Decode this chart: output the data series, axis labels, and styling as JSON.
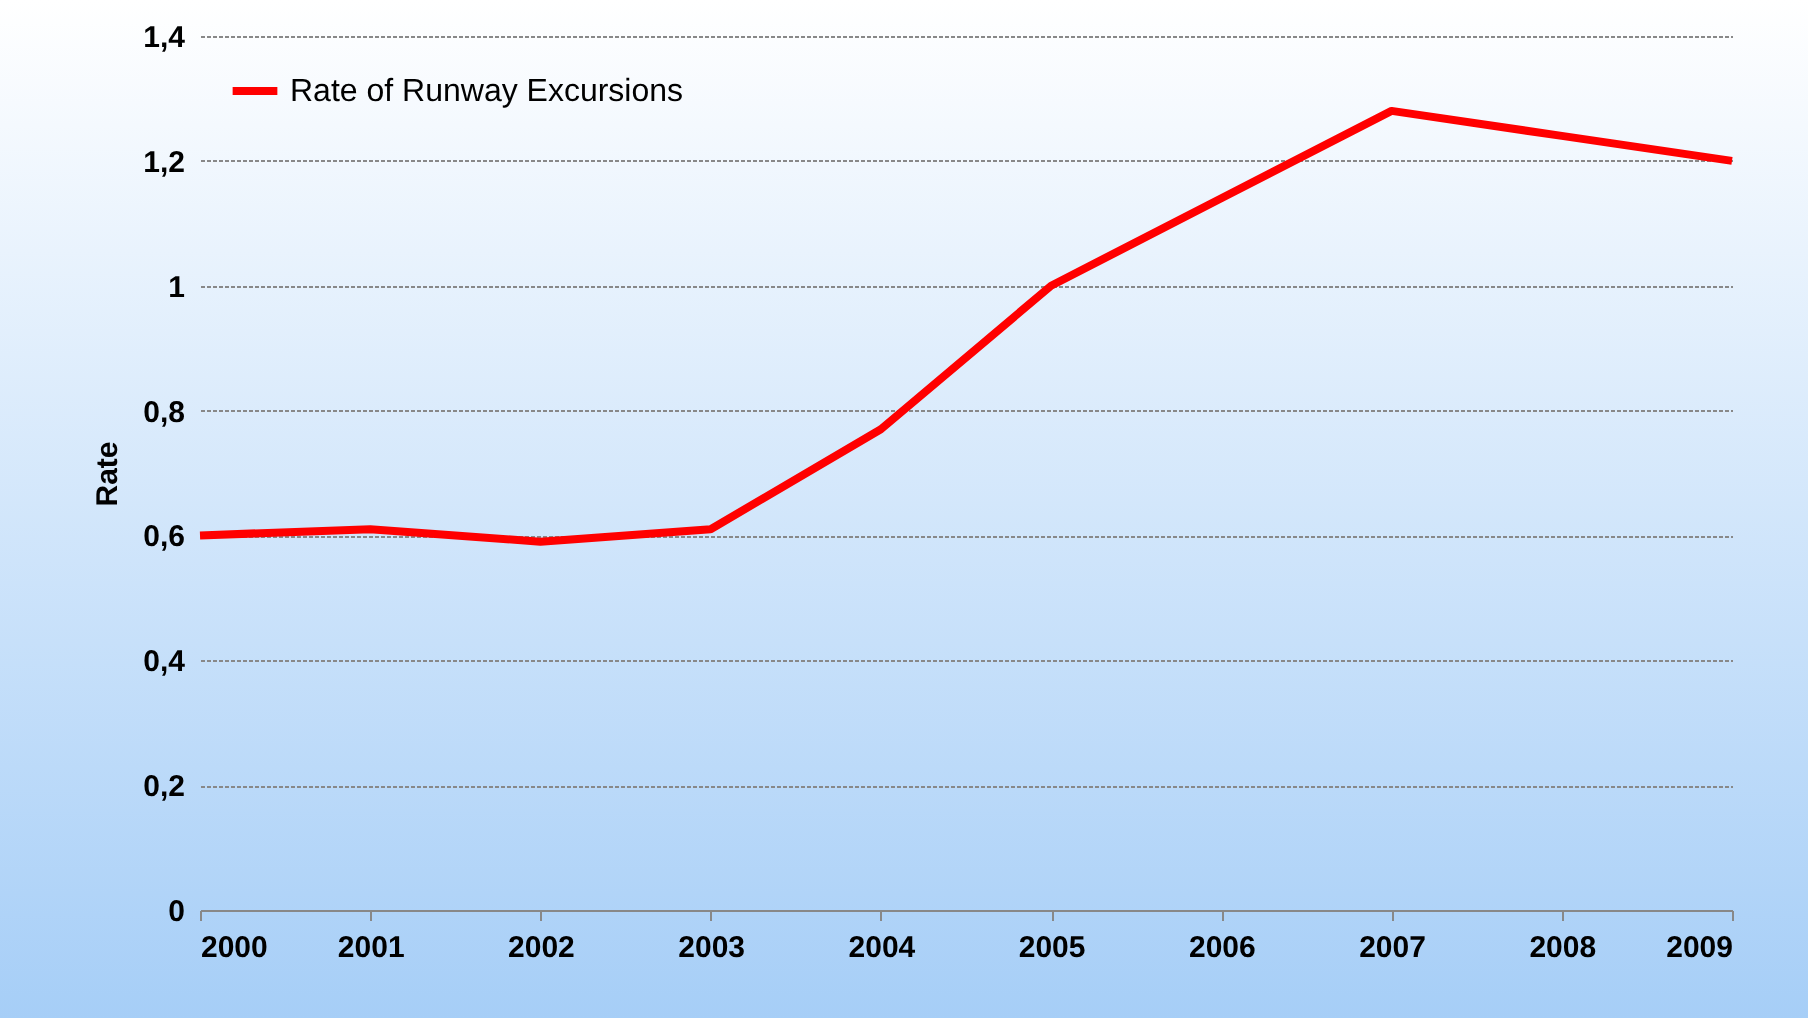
{
  "chart_data": {
    "type": "line",
    "ylabel": "Rate",
    "categories": [
      "2000",
      "2001",
      "2002",
      "2003",
      "2004",
      "2005",
      "2006",
      "2007",
      "2008",
      "2009"
    ],
    "series": [
      {
        "name": "Rate of Runway Excursions",
        "color": "#ff0000",
        "values": [
          0.6,
          0.61,
          0.59,
          0.61,
          0.77,
          1.0,
          1.14,
          1.28,
          1.24,
          1.2
        ]
      }
    ],
    "ylim": [
      0,
      1.4
    ],
    "yticks": [
      0,
      {
        "value": 0.2,
        "label": "0,2"
      },
      {
        "value": 0.4,
        "label": "0,4"
      },
      {
        "value": 0.6,
        "label": "0,6"
      },
      {
        "value": 0.8,
        "label": "0,8"
      },
      1,
      {
        "value": 1.2,
        "label": "1,2"
      },
      {
        "value": 1.4,
        "label": "1,4"
      }
    ],
    "grid": "y",
    "legend": "top left",
    "marker": "none",
    "line_style": "solid"
  }
}
